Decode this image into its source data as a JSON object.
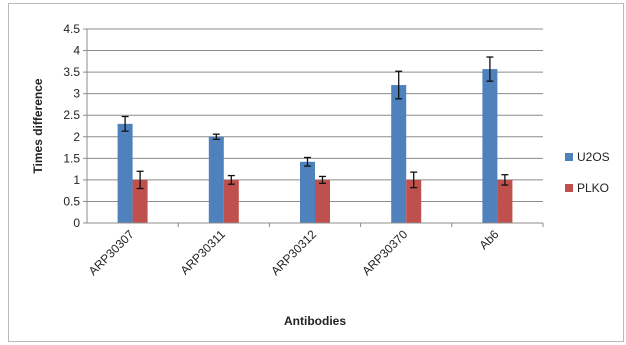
{
  "chart_data": {
    "type": "bar",
    "title": "",
    "xlabel": "Antibodies",
    "ylabel": "Times difference",
    "categories": [
      "ARP30307",
      "ARP30311",
      "ARP30312",
      "ARP30370",
      "Ab6"
    ],
    "series": [
      {
        "name": "U2OS",
        "color": "#4f81bd",
        "values": [
          2.3,
          2.0,
          1.42,
          3.2,
          3.57
        ],
        "errors": [
          0.17,
          0.06,
          0.1,
          0.32,
          0.28
        ]
      },
      {
        "name": "PLKO",
        "color": "#c0504d",
        "values": [
          1.0,
          1.0,
          1.0,
          1.0,
          1.0
        ],
        "errors": [
          0.2,
          0.1,
          0.08,
          0.18,
          0.12
        ]
      }
    ],
    "ylim": [
      0,
      4.5
    ],
    "yticks": [
      "0",
      "0.5",
      "1",
      "1.5",
      "2",
      "2.5",
      "3",
      "3.5",
      "4",
      "4.5"
    ],
    "grid": true,
    "legend_position": "right"
  }
}
